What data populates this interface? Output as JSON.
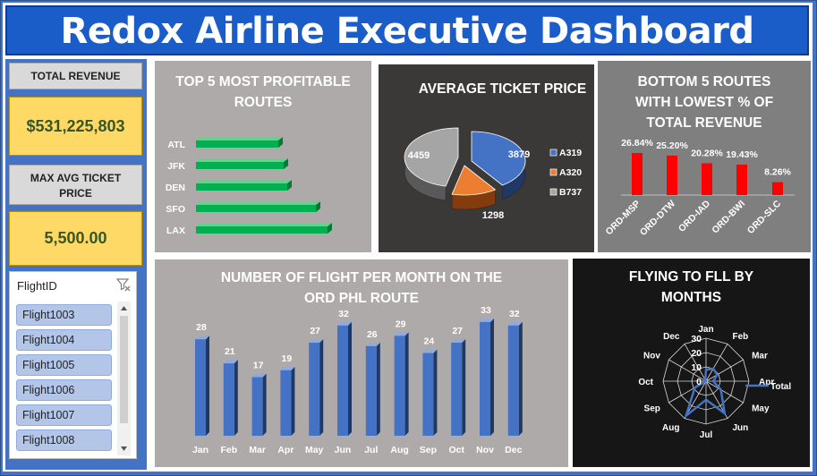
{
  "header": {
    "title": "Redox Airline Executive Dashboard"
  },
  "kpis": {
    "total_revenue_label": "TOTAL REVENUE",
    "total_revenue_value": "$531,225,803",
    "max_avg_ticket_label": "MAX AVG TICKET PRICE",
    "max_avg_ticket_value": "5,500.00"
  },
  "slicer": {
    "title": "FlightID",
    "items": [
      "Flight1003",
      "Flight1004",
      "Flight1005",
      "Flight1006",
      "Flight1007",
      "Flight1008"
    ]
  },
  "colors": {
    "accent_blue": "#4472c4",
    "title_bar": "#1a5cc8",
    "kpi_yellow": "#ffd966",
    "green_bars": "#00b050",
    "red_bars": "#ff0000",
    "column_blue": "#4472c4"
  },
  "chart_data": [
    {
      "id": "top5",
      "type": "bar",
      "orientation": "horizontal",
      "title": "TOP 5 MOST PROFITABLE ROUTES",
      "categories": [
        "ATL",
        "JFK",
        "DEN",
        "SFO",
        "LAX"
      ],
      "values": [
        92,
        98,
        102,
        134,
        147
      ]
    },
    {
      "id": "avgprice",
      "type": "pie",
      "title": "AVERAGE TICKET PRICE",
      "categories": [
        "A319",
        "A320",
        "B737"
      ],
      "values": [
        3879,
        1298,
        4459
      ]
    },
    {
      "id": "bottom5",
      "type": "bar",
      "title": "BOTTOM 5 ROUTES WITH LOWEST % OF TOTAL REVENUE",
      "categories": [
        "ORD-MSP",
        "ORD-DTW",
        "ORD-IAD",
        "ORD-BWI",
        "ORD-SLC"
      ],
      "values": [
        26.84,
        25.2,
        20.28,
        19.43,
        8.26
      ],
      "labels": [
        "26.84%",
        "25.20%",
        "20.28%",
        "19.43%",
        "8.26%"
      ]
    },
    {
      "id": "monthly",
      "type": "bar",
      "title": "NUMBER OF FLIGHT PER MONTH ON THE ORD PHL ROUTE",
      "categories": [
        "Jan",
        "Feb",
        "Mar",
        "Apr",
        "May",
        "Jun",
        "Jul",
        "Aug",
        "Sep",
        "Oct",
        "Nov",
        "Dec"
      ],
      "values": [
        28,
        21,
        17,
        19,
        27,
        32,
        26,
        29,
        24,
        27,
        33,
        32
      ]
    },
    {
      "id": "radar",
      "type": "radar",
      "title": "FLYING TO FLL BY MONTHS",
      "categories": [
        "Jan",
        "Feb",
        "Mar",
        "Apr",
        "May",
        "Jun",
        "Jul",
        "Aug",
        "Sep",
        "Oct",
        "Nov",
        "Dec"
      ],
      "series": [
        {
          "name": "Total",
          "values": [
            8,
            10,
            9,
            5,
            12,
            26,
            13,
            28,
            9,
            0,
            2,
            1
          ]
        }
      ],
      "rmax": 30,
      "ticks": [
        "0",
        "10",
        "20",
        "30"
      ],
      "legend": "right"
    }
  ]
}
